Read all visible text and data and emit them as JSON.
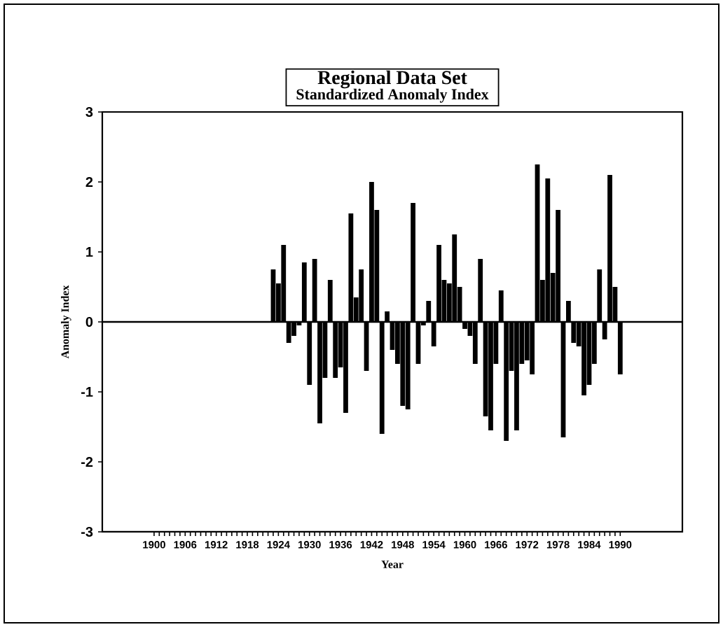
{
  "chart_data": {
    "type": "bar",
    "title": "Regional Data Set",
    "subtitle": "Standardized Anomaly Index",
    "xlabel": "Year",
    "ylabel": "Anomaly Index",
    "x": [
      1923,
      1924,
      1925,
      1926,
      1927,
      1928,
      1929,
      1930,
      1931,
      1932,
      1933,
      1934,
      1935,
      1936,
      1937,
      1938,
      1939,
      1940,
      1941,
      1942,
      1943,
      1944,
      1945,
      1946,
      1947,
      1948,
      1949,
      1950,
      1951,
      1952,
      1953,
      1954,
      1955,
      1956,
      1957,
      1958,
      1959,
      1960,
      1961,
      1962,
      1963,
      1964,
      1965,
      1966,
      1967,
      1968,
      1969,
      1970,
      1971,
      1972,
      1973,
      1974,
      1975,
      1976,
      1977,
      1978,
      1979,
      1980,
      1981,
      1982,
      1983,
      1984,
      1985,
      1986,
      1987,
      1988,
      1989,
      1990
    ],
    "values": [
      0.75,
      0.55,
      1.1,
      -0.3,
      -0.2,
      -0.05,
      0.85,
      -0.9,
      0.9,
      -1.45,
      -0.8,
      0.6,
      -0.8,
      -0.65,
      -1.3,
      1.55,
      0.35,
      0.75,
      -0.7,
      2.0,
      1.6,
      -1.6,
      0.15,
      -0.4,
      -0.6,
      -1.2,
      -1.25,
      1.7,
      -0.6,
      -0.05,
      0.3,
      -0.35,
      1.1,
      0.6,
      0.55,
      1.25,
      0.5,
      -0.1,
      -0.2,
      -0.6,
      0.9,
      -1.35,
      -1.55,
      -0.6,
      0.45,
      -1.7,
      -0.7,
      -1.55,
      -0.6,
      -0.55,
      -0.75,
      2.25,
      0.6,
      2.05,
      0.7,
      1.6,
      -1.65,
      0.3,
      -0.3,
      -0.35,
      -1.05,
      -0.9,
      -0.6,
      0.75,
      -0.25,
      2.1,
      0.5,
      -0.75
    ],
    "color": "#000000",
    "xlim": [
      1890,
      2002
    ],
    "ylim": [
      -3,
      3
    ],
    "xticks": [
      1900,
      1906,
      1912,
      1918,
      1924,
      1930,
      1936,
      1942,
      1948,
      1954,
      1960,
      1966,
      1972,
      1978,
      1984,
      1990
    ],
    "yticks": [
      -3,
      -2,
      -1,
      0,
      1,
      2,
      3
    ],
    "ref_lines": [
      {
        "axis": "y",
        "value": 0,
        "color": "#000000"
      }
    ]
  }
}
